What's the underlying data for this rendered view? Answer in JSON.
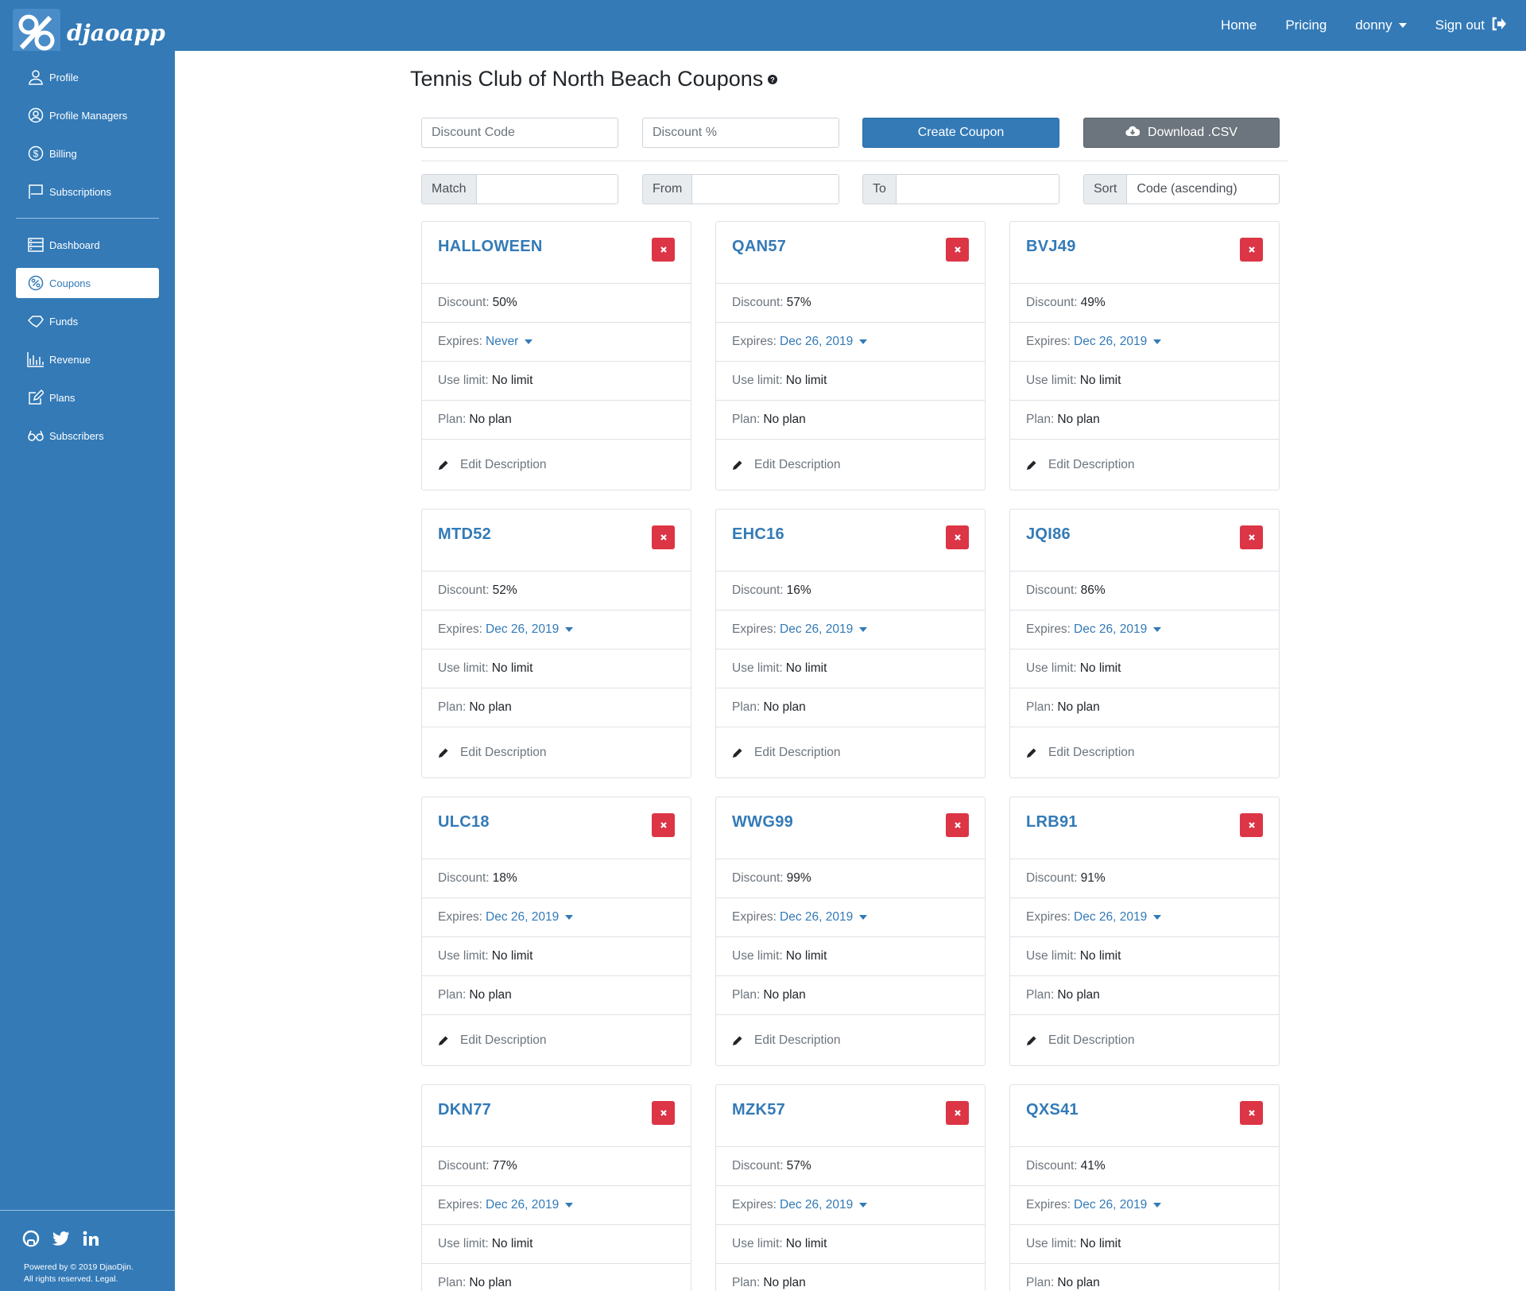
{
  "brand": {
    "name": "djaoapp"
  },
  "nav": {
    "home": "Home",
    "pricing": "Pricing",
    "user": "donny",
    "signout": "Sign out"
  },
  "sidebar": {
    "items": [
      {
        "label": "Profile",
        "icon": "user-icon"
      },
      {
        "label": "Profile Managers",
        "icon": "user-circle-icon"
      },
      {
        "label": "Billing",
        "icon": "dollar-circle-icon"
      },
      {
        "label": "Subscriptions",
        "icon": "flag-icon"
      },
      {
        "label": "Dashboard",
        "icon": "dashboard-icon"
      },
      {
        "label": "Coupons",
        "icon": "percent-icon"
      },
      {
        "label": "Funds",
        "icon": "funds-icon"
      },
      {
        "label": "Revenue",
        "icon": "chart-icon"
      },
      {
        "label": "Plans",
        "icon": "edit-icon"
      },
      {
        "label": "Subscribers",
        "icon": "glasses-icon"
      }
    ],
    "active": "Coupons",
    "footer": {
      "line1": "Powered by © 2019 DjaoDjin.",
      "line2": "All rights reserved. Legal."
    }
  },
  "page": {
    "title": "Tennis Club of North Beach Coupons"
  },
  "form": {
    "code_placeholder": "Discount Code",
    "percent_placeholder": "Discount %",
    "create_label": "Create Coupon",
    "download_label": "Download .CSV"
  },
  "filters": {
    "match_label": "Match",
    "from_label": "From",
    "to_label": "To",
    "sort_label": "Sort",
    "sort_value": "Code (ascending)"
  },
  "labels": {
    "discount": "Discount:",
    "expires": "Expires:",
    "use_limit": "Use limit:",
    "plan": "Plan:",
    "edit": "Edit Description"
  },
  "colors": {
    "primary": "#337ab7",
    "danger": "#dc3545",
    "secondary": "#6c757d"
  },
  "coupons": [
    {
      "code": "HALLOWEEN",
      "discount": "50%",
      "expires": "Never",
      "use_limit": "No limit",
      "plan": "No plan"
    },
    {
      "code": "QAN57",
      "discount": "57%",
      "expires": "Dec 26, 2019",
      "use_limit": "No limit",
      "plan": "No plan"
    },
    {
      "code": "BVJ49",
      "discount": "49%",
      "expires": "Dec 26, 2019",
      "use_limit": "No limit",
      "plan": "No plan"
    },
    {
      "code": "MTD52",
      "discount": "52%",
      "expires": "Dec 26, 2019",
      "use_limit": "No limit",
      "plan": "No plan"
    },
    {
      "code": "EHC16",
      "discount": "16%",
      "expires": "Dec 26, 2019",
      "use_limit": "No limit",
      "plan": "No plan"
    },
    {
      "code": "JQI86",
      "discount": "86%",
      "expires": "Dec 26, 2019",
      "use_limit": "No limit",
      "plan": "No plan"
    },
    {
      "code": "ULC18",
      "discount": "18%",
      "expires": "Dec 26, 2019",
      "use_limit": "No limit",
      "plan": "No plan"
    },
    {
      "code": "WWG99",
      "discount": "99%",
      "expires": "Dec 26, 2019",
      "use_limit": "No limit",
      "plan": "No plan"
    },
    {
      "code": "LRB91",
      "discount": "91%",
      "expires": "Dec 26, 2019",
      "use_limit": "No limit",
      "plan": "No plan"
    },
    {
      "code": "DKN77",
      "discount": "77%",
      "expires": "Dec 26, 2019",
      "use_limit": "No limit",
      "plan": "No plan"
    },
    {
      "code": "MZK57",
      "discount": "57%",
      "expires": "Dec 26, 2019",
      "use_limit": "No limit",
      "plan": "No plan"
    },
    {
      "code": "QXS41",
      "discount": "41%",
      "expires": "Dec 26, 2019",
      "use_limit": "No limit",
      "plan": "No plan"
    }
  ]
}
